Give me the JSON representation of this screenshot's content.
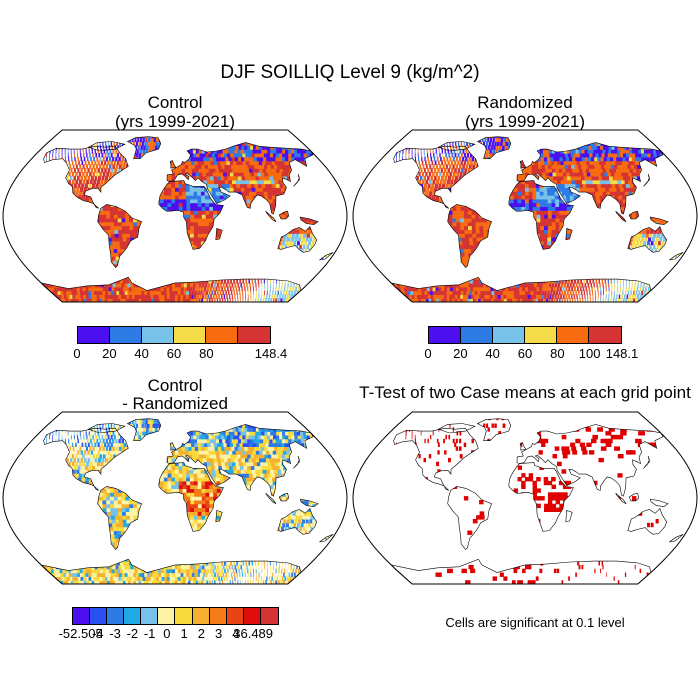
{
  "chart_data": {
    "type": "heatmap",
    "title": "DJF SOILLIQ Level 9 (kg/m^2)",
    "panels": [
      {
        "id": "control",
        "title": "Control",
        "subtitle": "(yrs 1999-2021)",
        "colorbar": {
          "colors": [
            "#4b0ff0",
            "#2f7be6",
            "#78c2ea",
            "#f3dc48",
            "#f76c10",
            "#d43434"
          ],
          "labels": [
            "0",
            "20",
            "40",
            "60",
            "80",
            "",
            "148.4"
          ]
        }
      },
      {
        "id": "randomized",
        "title": "Randomized",
        "subtitle": "(yrs 1999-2021)",
        "colorbar": {
          "colors": [
            "#4b0ff0",
            "#2f7be6",
            "#78c2ea",
            "#f3dc48",
            "#f76c10",
            "#d43434"
          ],
          "labels": [
            "0",
            "20",
            "40",
            "60",
            "80",
            "100",
            "148.1"
          ]
        }
      },
      {
        "id": "difference",
        "title": "Control",
        "subtitle": "- Randomized",
        "colorbar": {
          "colors": [
            "#4b0ff0",
            "#2a4ff3",
            "#2f7be6",
            "#22a9e3",
            "#78c2ea",
            "#fdf3a6",
            "#f8da3c",
            "#f4b02e",
            "#f47b17",
            "#e84416",
            "#df0e0e",
            "#d43434"
          ],
          "labels": [
            "-52.505",
            "-4",
            "-3",
            "-2",
            "-1",
            "0",
            "1",
            "2",
            "3",
            "4",
            "36.489"
          ]
        }
      },
      {
        "id": "ttest",
        "title": "T-Test of two Case means at each grid point",
        "note": "Cells are significant at 0.1 level",
        "significant_color": "#e00000"
      }
    ]
  }
}
